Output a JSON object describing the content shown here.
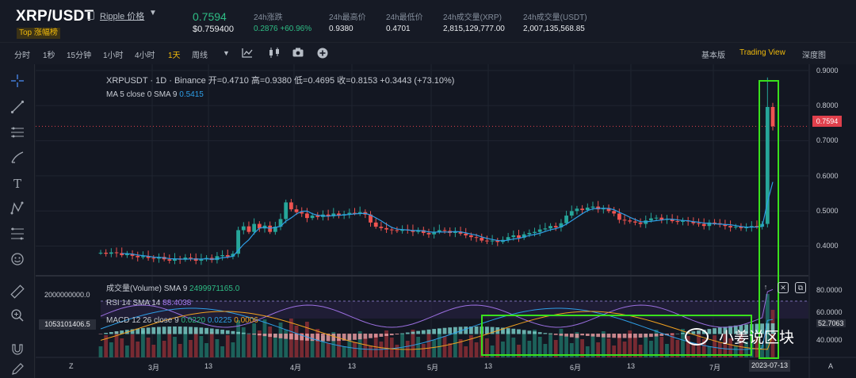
{
  "header": {
    "pair": "XRP/USDT",
    "coin_link": "Ripple 价格",
    "caret": "▼",
    "badge": "Top 涨幅榜",
    "price": "0.7594",
    "price_usd": "$0.759400",
    "stats": [
      {
        "label": "24h涨跌",
        "value": "0.2876 +60.96%"
      },
      {
        "label": "24h最高价",
        "value": "0.9380"
      },
      {
        "label": "24h最低价",
        "value": "0.4701"
      },
      {
        "label": "24h成交量(XRP)",
        "value": "2,815,129,777.00"
      },
      {
        "label": "24h成交量(USDT)",
        "value": "2,007,135,568.85"
      }
    ]
  },
  "toolbar": {
    "intervals": [
      "分时",
      "1秒",
      "15分钟",
      "1小时",
      "4小时",
      "1天",
      "周线"
    ],
    "active_interval": "1天",
    "views": [
      "基本版",
      "Trading View",
      "深度图"
    ],
    "active_view": "Trading View",
    "icons": [
      "chevron-down-icon",
      "indicator-icon",
      "candles-icon",
      "camera-icon",
      "plus-icon"
    ]
  },
  "tools": [
    "crosshair-icon",
    "line-icon",
    "horizontal-lines-icon",
    "brush-icon",
    "text-icon",
    "pattern-icon",
    "fib-icon",
    "emoji-icon",
    "ruler-icon",
    "zoom-icon",
    "magnet-icon",
    "pencil-icon"
  ],
  "chart": {
    "legend_main": "XRPUSDT · 1D · Binance  开=0.4710  高=0.9380  低=0.4695  收=0.8153  +0.3443 (+73.10%)",
    "legend_ma_label": "MA 5 close 0 SMA 9",
    "legend_ma_value": "0.5415",
    "vol_label": "成交量(Volume) SMA 9",
    "vol_value": "2499971165.0",
    "rsi_label": "RSI 14 SMA 14",
    "rsi_value": "88.4038",
    "macd_label": "MACD 12 26 close 9",
    "macd_values": [
      "0.0220",
      "0.0225",
      "0.0006"
    ],
    "current_price_tag": "0.7594",
    "vol_tag": "1053101406.5",
    "vol_axis": "2000000000.0",
    "date_tag": "2023-07-13",
    "price_axis": [
      "0.9000",
      "0.8000",
      "0.7000",
      "0.6000",
      "0.5000",
      "0.4000"
    ],
    "ind_axis": [
      "80.0000",
      "60.0000",
      "52.7063",
      "40.0000"
    ],
    "time_axis": [
      "3月",
      "13",
      "4月",
      "13",
      "5月",
      "13",
      "6月",
      "13",
      "7月"
    ],
    "corner_left": "Z",
    "corner_right": "A",
    "watermark": "小姜说区块"
  },
  "chart_data": {
    "type": "candlestick",
    "symbol": "XRPUSDT",
    "interval": "1D",
    "ylim": [
      0.34,
      0.92
    ],
    "closes": [
      0.395,
      0.392,
      0.396,
      0.394,
      0.388,
      0.392,
      0.386,
      0.382,
      0.385,
      0.38,
      0.378,
      0.383,
      0.376,
      0.372,
      0.378,
      0.375,
      0.381,
      0.379,
      0.372,
      0.376,
      0.38,
      0.374,
      0.385,
      0.388,
      0.384,
      0.392,
      0.46,
      0.471,
      0.455,
      0.478,
      0.465,
      0.473,
      0.455,
      0.47,
      0.492,
      0.54,
      0.52,
      0.512,
      0.508,
      0.495,
      0.502,
      0.498,
      0.505,
      0.5,
      0.508,
      0.502,
      0.506,
      0.51,
      0.509,
      0.512,
      0.505,
      0.482,
      0.47,
      0.466,
      0.462,
      0.46,
      0.458,
      0.462,
      0.46,
      0.455,
      0.46,
      0.452,
      0.448,
      0.455,
      0.46,
      0.458,
      0.452,
      0.456,
      0.45,
      0.445,
      0.44,
      0.438,
      0.43,
      0.428,
      0.43,
      0.426,
      0.432,
      0.44,
      0.445,
      0.438,
      0.448,
      0.452,
      0.455,
      0.462,
      0.465,
      0.472,
      0.468,
      0.48,
      0.502,
      0.515,
      0.522,
      0.518,
      0.525,
      0.528,
      0.52,
      0.524,
      0.515,
      0.508,
      0.49,
      0.488,
      0.485,
      0.482,
      0.478,
      0.488,
      0.494,
      0.496,
      0.49,
      0.492,
      0.486,
      0.484,
      0.488,
      0.485,
      0.48,
      0.478,
      0.472,
      0.482,
      0.48,
      0.476,
      0.472,
      0.468,
      0.47,
      0.466,
      0.468,
      0.472,
      0.47,
      0.478,
      0.815,
      0.7594
    ],
    "volume_shape": "elevated in early April, moderate through May-June, spike on 2023-07-13",
    "highlight_regions": [
      "macd-may-june",
      "xrp-jul-13-spike"
    ]
  }
}
